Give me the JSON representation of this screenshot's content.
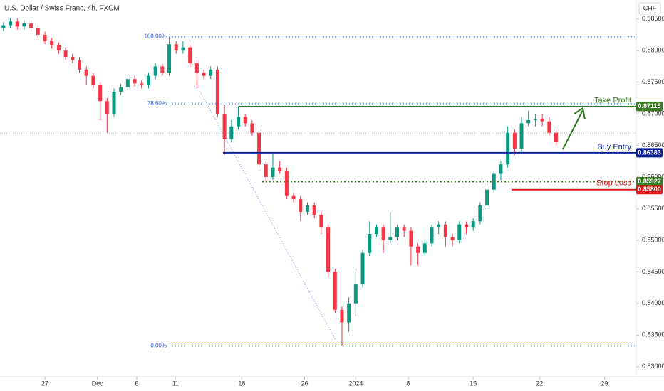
{
  "chart_data": {
    "type": "candlestick",
    "title": "U.S. Dollar / Swiss Franc, 4h, FXCM",
    "currency": "CHF",
    "up_color": "#089981",
    "down_color": "#f23645",
    "ylim": [
      0.8284,
      0.888
    ],
    "xlim": [
      -0.5,
      91.6
    ],
    "yticks": [
      {
        "value": 0.885,
        "label": "0.88500"
      },
      {
        "value": 0.88,
        "label": "0.88000"
      },
      {
        "value": 0.875,
        "label": "0.87500"
      },
      {
        "value": 0.87,
        "label": "0.87000"
      },
      {
        "value": 0.865,
        "label": "0.86500"
      },
      {
        "value": 0.86,
        "label": "0.86000"
      },
      {
        "value": 0.855,
        "label": "0.85500"
      },
      {
        "value": 0.85,
        "label": "0.85000"
      },
      {
        "value": 0.845,
        "label": "0.84500"
      },
      {
        "value": 0.84,
        "label": "0.84000"
      },
      {
        "value": 0.835,
        "label": "0.83500"
      },
      {
        "value": 0.83,
        "label": "0.83000"
      }
    ],
    "xticks": [
      {
        "value": 6,
        "label": "27"
      },
      {
        "value": 13.6,
        "label": "Dec"
      },
      {
        "value": 19.3,
        "label": "6"
      },
      {
        "value": 24.9,
        "label": "11"
      },
      {
        "value": 34.5,
        "label": "18"
      },
      {
        "value": 43.6,
        "label": "26"
      },
      {
        "value": 51,
        "label": "2024"
      },
      {
        "value": 58.6,
        "label": "8"
      },
      {
        "value": 68,
        "label": "15"
      },
      {
        "value": 77.6,
        "label": "22"
      },
      {
        "value": 87,
        "label": "29"
      }
    ],
    "open": [
      0.8836,
      0.884,
      0.8846,
      0.8838,
      0.8843,
      0.8835,
      0.8825,
      0.8815,
      0.8808,
      0.88,
      0.879,
      0.8785,
      0.877,
      0.876,
      0.8745,
      0.872,
      0.87,
      0.8735,
      0.8742,
      0.8755,
      0.8748,
      0.8745,
      0.876,
      0.8775,
      0.8765,
      0.881,
      0.88,
      0.8805,
      0.878,
      0.8765,
      0.876,
      0.877,
      0.87,
      0.866,
      0.868,
      0.8695,
      0.8685,
      0.867,
      0.862,
      0.86,
      0.8615,
      0.861,
      0.857,
      0.8565,
      0.8545,
      0.8555,
      0.854,
      0.852,
      0.845,
      0.839,
      0.837,
      0.84,
      0.843,
      0.848,
      0.851,
      0.852,
      0.85,
      0.8505,
      0.852,
      0.8515,
      0.849,
      0.848,
      0.8495,
      0.852,
      0.8525,
      0.8505,
      0.85,
      0.8525,
      0.852,
      0.853,
      0.8555,
      0.858,
      0.8605,
      0.862,
      0.867,
      0.8645,
      0.8685,
      0.869,
      0.8692,
      0.8688,
      0.867
    ],
    "high": [
      0.8845,
      0.8851,
      0.8851,
      0.8848,
      0.8848,
      0.884,
      0.883,
      0.882,
      0.8813,
      0.8805,
      0.8795,
      0.879,
      0.8775,
      0.8765,
      0.875,
      0.8725,
      0.874,
      0.8747,
      0.876,
      0.876,
      0.8753,
      0.8765,
      0.878,
      0.878,
      0.8822,
      0.8815,
      0.8815,
      0.881,
      0.8785,
      0.877,
      0.8775,
      0.8775,
      0.8715,
      0.869,
      0.8712,
      0.87,
      0.869,
      0.8675,
      0.8625,
      0.8638,
      0.8625,
      0.8615,
      0.8575,
      0.857,
      0.856,
      0.856,
      0.8545,
      0.8525,
      0.8455,
      0.8395,
      0.841,
      0.845,
      0.8485,
      0.853,
      0.8525,
      0.8525,
      0.8545,
      0.8525,
      0.8525,
      0.852,
      0.8495,
      0.85,
      0.8525,
      0.853,
      0.853,
      0.851,
      0.853,
      0.853,
      0.8535,
      0.856,
      0.8585,
      0.861,
      0.8625,
      0.868,
      0.8675,
      0.8695,
      0.8705,
      0.87,
      0.87,
      0.8695,
      0.8675
    ],
    "low": [
      0.8831,
      0.8835,
      0.8833,
      0.8833,
      0.883,
      0.882,
      0.881,
      0.8803,
      0.8795,
      0.8785,
      0.878,
      0.8765,
      0.8745,
      0.874,
      0.869,
      0.867,
      0.8695,
      0.873,
      0.8737,
      0.8743,
      0.874,
      0.874,
      0.8755,
      0.876,
      0.876,
      0.8795,
      0.8795,
      0.8775,
      0.874,
      0.8755,
      0.8755,
      0.8695,
      0.8635,
      0.8655,
      0.8675,
      0.868,
      0.8665,
      0.8615,
      0.859,
      0.8595,
      0.8605,
      0.8565,
      0.856,
      0.853,
      0.854,
      0.8535,
      0.851,
      0.844,
      0.8385,
      0.8333,
      0.8355,
      0.838,
      0.8425,
      0.8475,
      0.8505,
      0.848,
      0.8495,
      0.85,
      0.8505,
      0.846,
      0.846,
      0.8475,
      0.849,
      0.851,
      0.849,
      0.849,
      0.8495,
      0.851,
      0.8515,
      0.8525,
      0.855,
      0.8575,
      0.8595,
      0.8615,
      0.8635,
      0.864,
      0.868,
      0.868,
      0.868,
      0.8665,
      0.865
    ],
    "close": [
      0.884,
      0.8846,
      0.8838,
      0.8843,
      0.8835,
      0.8825,
      0.8815,
      0.8808,
      0.88,
      0.879,
      0.8785,
      0.877,
      0.876,
      0.8745,
      0.872,
      0.87,
      0.8735,
      0.8742,
      0.8755,
      0.8748,
      0.8745,
      0.876,
      0.8775,
      0.8765,
      0.881,
      0.88,
      0.8805,
      0.878,
      0.8765,
      0.876,
      0.877,
      0.87,
      0.866,
      0.868,
      0.8695,
      0.8685,
      0.867,
      0.862,
      0.86,
      0.8615,
      0.861,
      0.857,
      0.8565,
      0.8545,
      0.8555,
      0.854,
      0.852,
      0.845,
      0.839,
      0.837,
      0.84,
      0.843,
      0.848,
      0.851,
      0.852,
      0.85,
      0.8505,
      0.852,
      0.8515,
      0.849,
      0.848,
      0.8495,
      0.852,
      0.8525,
      0.8505,
      0.85,
      0.8525,
      0.852,
      0.853,
      0.8555,
      0.858,
      0.8605,
      0.862,
      0.867,
      0.8645,
      0.8685,
      0.869,
      0.8692,
      0.8688,
      0.867,
      0.8655
    ],
    "fib_levels": [
      {
        "label": "100.00%",
        "value": 0.8822
      },
      {
        "label": "78.60%",
        "value": 0.8716
      },
      {
        "label": "0.00%",
        "value": 0.8333
      }
    ],
    "levels": [
      {
        "label": "Take Profit",
        "value": 0.87115,
        "value_label": "0.87115",
        "color": "#3a7a22"
      },
      {
        "label": "Buy Entry",
        "value": 0.86383,
        "value_label": "0.86383",
        "color": "#0d239c"
      },
      {
        "value": 0.85927,
        "value_label": "0.85927",
        "color": "#3a7a22"
      },
      {
        "label": "Stop Loss",
        "value": 0.858,
        "value_label": "0.85800",
        "color": "#e01818"
      }
    ]
  }
}
